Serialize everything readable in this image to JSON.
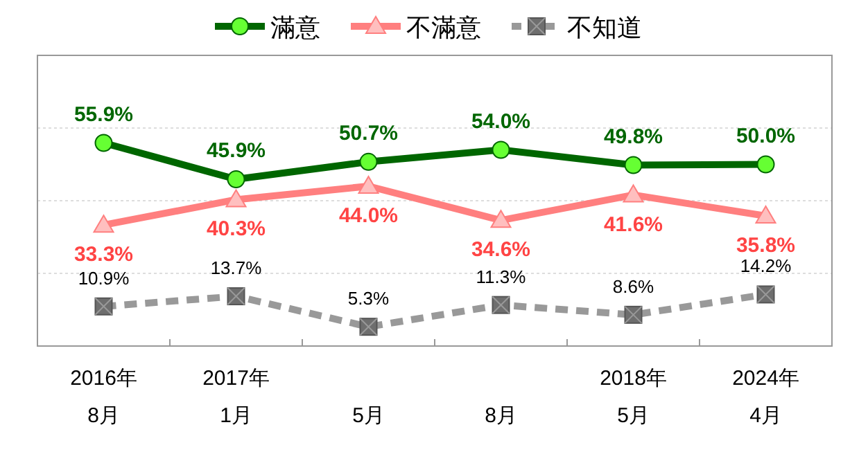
{
  "chart_data": {
    "type": "line",
    "categories": [
      "2016年\n8月",
      "2017年\n1月",
      "5月",
      "8月",
      "2018年\n5月",
      "2024年\n4月"
    ],
    "series": [
      {
        "name": "滿意",
        "color": "#006600",
        "marker": "circle",
        "line_style": "solid",
        "values": [
          55.9,
          45.9,
          50.7,
          54.0,
          49.8,
          50.0
        ],
        "value_labels": [
          "55.9%",
          "45.9%",
          "50.7%",
          "54.0%",
          "49.8%",
          "50.0%"
        ]
      },
      {
        "name": "不滿意",
        "color": "#ff7f7f",
        "marker": "triangle",
        "line_style": "solid",
        "values": [
          33.3,
          40.3,
          44.0,
          34.6,
          41.6,
          35.8
        ],
        "value_labels": [
          "33.3%",
          "40.3%",
          "44.0%",
          "34.6%",
          "41.6%",
          "35.8%"
        ]
      },
      {
        "name": "不知道",
        "color": "#999999",
        "marker": "cross",
        "line_style": "dashed",
        "values": [
          10.9,
          13.7,
          5.3,
          11.3,
          8.6,
          14.2
        ],
        "value_labels": [
          "10.9%",
          "13.7%",
          "5.3%",
          "11.3%",
          "8.6%",
          "14.2%"
        ]
      }
    ],
    "ylim": [
      0,
      80
    ],
    "yticks": [
      {
        "value": 0,
        "label": null
      },
      {
        "value": 20,
        "label": null
      },
      {
        "value": 40,
        "label": null
      },
      {
        "value": 60,
        "label": null
      },
      {
        "value": 80,
        "label": null
      }
    ],
    "tick_labels": "x",
    "grid": "y",
    "legend": "top"
  }
}
